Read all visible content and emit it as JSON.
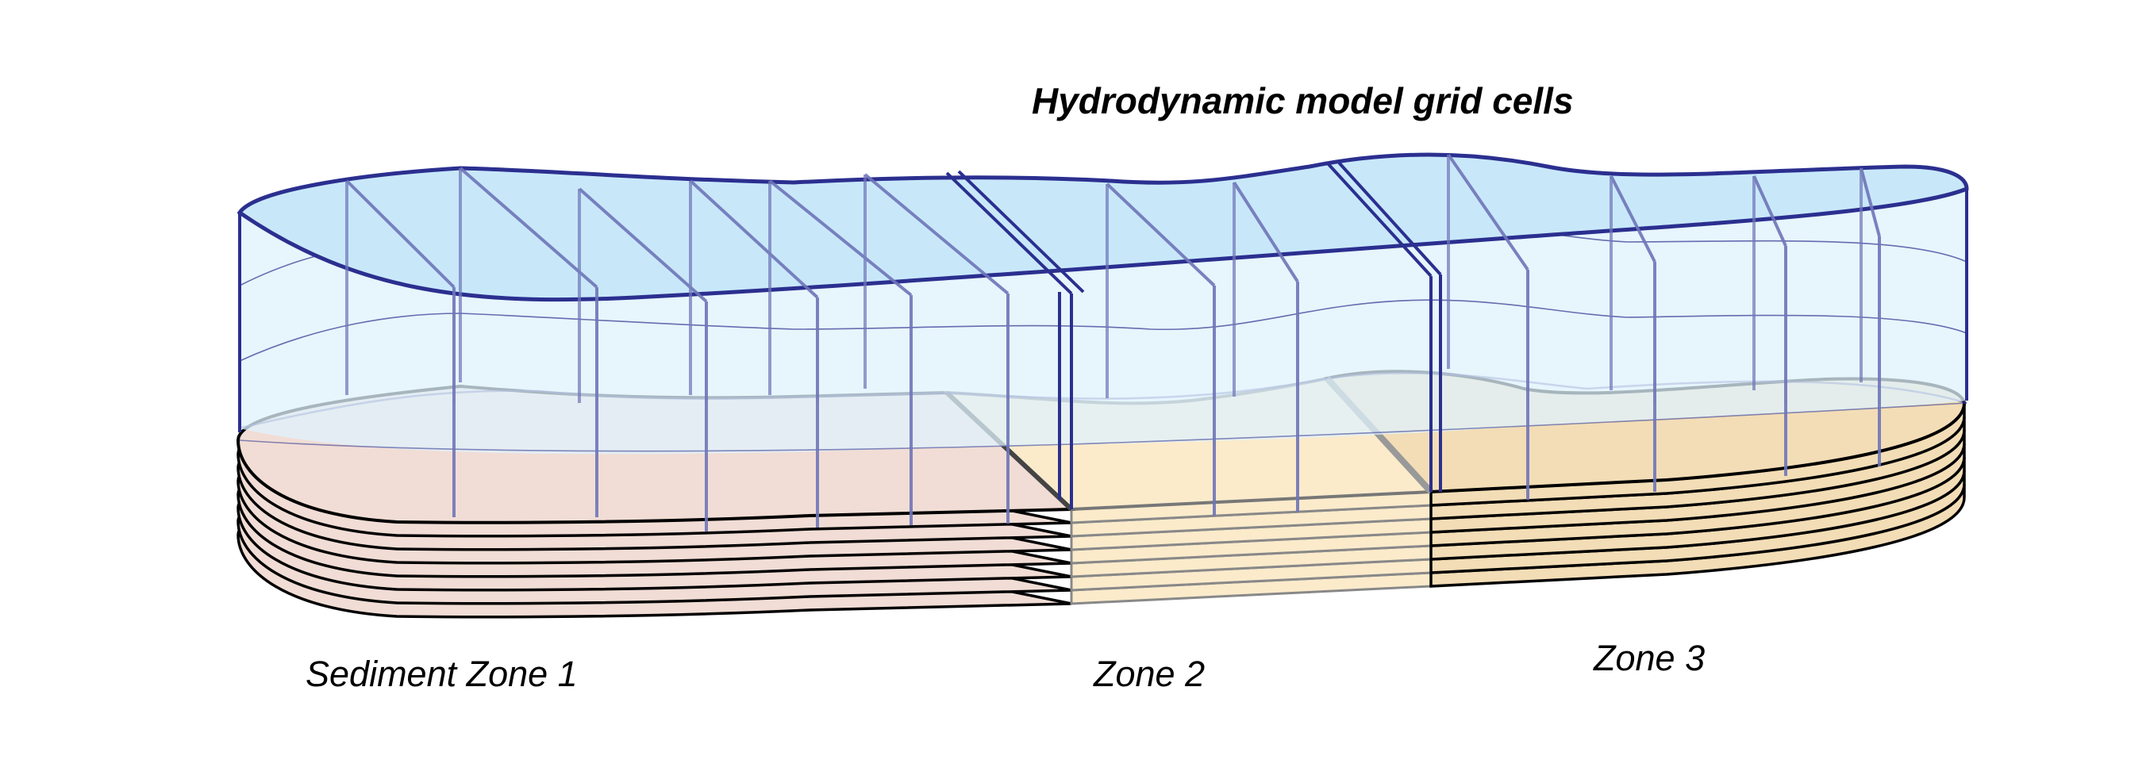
{
  "title": "Hydrodynamic model grid cells",
  "zones": [
    {
      "id": "zone-1",
      "label": "Sediment Zone 1"
    },
    {
      "id": "zone-2",
      "label": "Zone 2"
    },
    {
      "id": "zone-3",
      "label": "Zone 3"
    }
  ],
  "sediment_layer_count": 7,
  "colors": {
    "water_top": "#c8e8fa",
    "water_body": "#dff2fc",
    "water_edge": "#2b2f8f",
    "grid_line": "#6f75b8",
    "zone_1_fill": "#f1ddd5",
    "zone_2_fill": "#fbebcb",
    "zone_3_fill": "#f3ddb6",
    "sediment_edge": "#000000"
  }
}
